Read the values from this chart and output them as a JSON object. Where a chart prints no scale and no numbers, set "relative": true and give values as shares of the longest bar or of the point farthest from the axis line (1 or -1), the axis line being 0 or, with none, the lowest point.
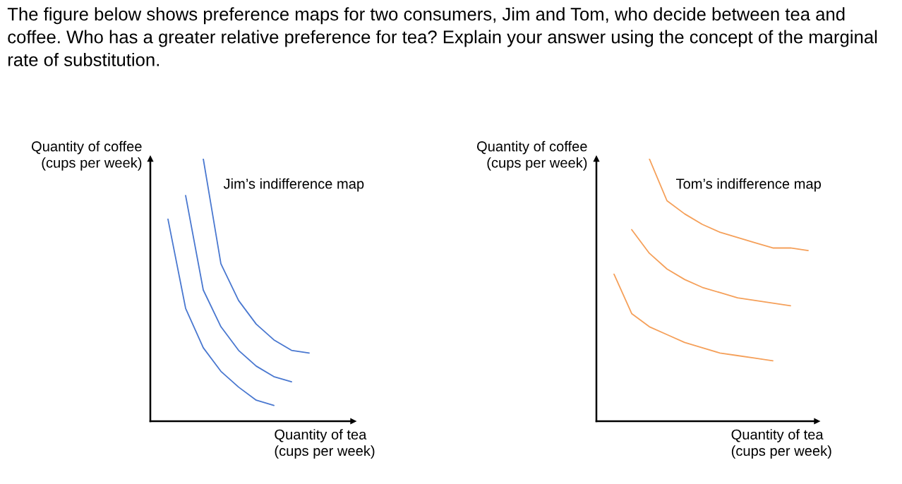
{
  "chart_data": [
    {
      "type": "line",
      "relative": true,
      "title": "The figure below shows preference maps for two consumers, Jim and Tom, who decide between tea and coffee. Who has a greater relative preference for tea? Explain your answer using the concept of the marginal rate of substitution.",
      "subtitle": "Jim’s indifference map",
      "xlabel": "Quantity of tea\n(cups per week)",
      "ylabel": "Quantity of coffee\n(cups per week)",
      "categories": [
        null,
        null,
        null,
        null,
        null,
        null,
        null,
        null,
        null,
        null,
        null
      ],
      "series": [
        {
          "color": "#4a78d0",
          "values": [
            0.77,
            0.43,
            0.28,
            0.19,
            0.13,
            0.08,
            0.06,
            null,
            null,
            null,
            null
          ]
        },
        {
          "color": "#4a78d0",
          "values": [
            null,
            0.86,
            0.5,
            0.36,
            0.27,
            0.21,
            0.17,
            0.15,
            null,
            null,
            null
          ]
        },
        {
          "color": "#4a78d0",
          "values": [
            null,
            null,
            1.0,
            0.6,
            0.46,
            0.37,
            0.31,
            0.27,
            0.26,
            null,
            null
          ]
        }
      ]
    },
    {
      "type": "line",
      "relative": true,
      "subtitle": "Tom’s indifference map",
      "xlabel": "Quantity of tea\n(cups per week)",
      "ylabel": "Quantity of coffee\n(cups per week)",
      "categories": [
        null,
        null,
        null,
        null,
        null,
        null,
        null,
        null,
        null,
        null,
        null,
        null
      ],
      "series": [
        {
          "color": "#f5a05a",
          "values": [
            0.56,
            0.41,
            0.36,
            0.33,
            0.3,
            0.28,
            0.26,
            0.25,
            0.24,
            0.23,
            null,
            null
          ]
        },
        {
          "color": "#f5a05a",
          "values": [
            null,
            0.73,
            0.64,
            0.58,
            0.54,
            0.51,
            0.49,
            0.47,
            0.46,
            0.45,
            0.44,
            null
          ]
        },
        {
          "color": "#f5a05a",
          "values": [
            null,
            null,
            1.0,
            0.84,
            0.79,
            0.75,
            0.72,
            0.7,
            0.68,
            0.66,
            0.66,
            0.65
          ]
        }
      ]
    }
  ]
}
